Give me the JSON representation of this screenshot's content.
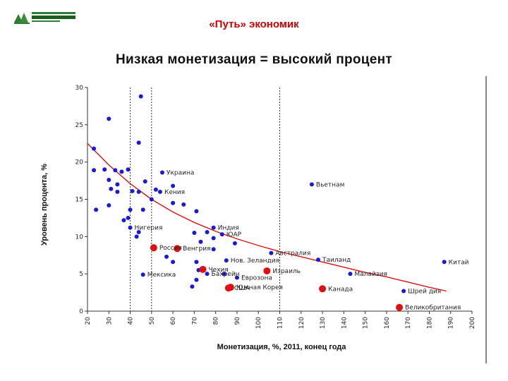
{
  "header": {
    "logo": "organization-logo",
    "title": "«Путь» экономик"
  },
  "slide_title": "Низкая монетизация = высокий процент",
  "colors": {
    "header_title": "#cc0000",
    "point_blue": "#1a1ad6",
    "point_red": "#e01010",
    "trend": "#dd1111",
    "logo_green": "#2e7d32"
  },
  "chart_data": {
    "type": "scatter",
    "xlabel": "Монетизация, %, 2011, конец года",
    "ylabel": "Уровень процента, %",
    "xlim": [
      20,
      200
    ],
    "ylim": [
      0,
      30
    ],
    "x_ticks": [
      20,
      30,
      40,
      50,
      60,
      70,
      80,
      90,
      100,
      110,
      120,
      130,
      140,
      150,
      160,
      170,
      180,
      190,
      200
    ],
    "y_ticks": [
      0,
      5,
      10,
      15,
      20,
      25,
      30
    ],
    "reference_lines_x": [
      40,
      50,
      110
    ],
    "grid": false,
    "legend": "none",
    "trend_line": {
      "type": "decay",
      "points": [
        [
          20,
          22.5
        ],
        [
          30,
          19.6
        ],
        [
          40,
          17.1
        ],
        [
          50,
          15.0
        ],
        [
          60,
          13.3
        ],
        [
          70,
          11.9
        ],
        [
          80,
          10.7
        ],
        [
          90,
          9.7
        ],
        [
          100,
          8.8
        ],
        [
          110,
          8.0
        ],
        [
          120,
          7.3
        ],
        [
          130,
          6.6
        ],
        [
          140,
          5.9
        ],
        [
          150,
          5.2
        ],
        [
          160,
          4.6
        ],
        [
          170,
          3.9
        ],
        [
          180,
          3.2
        ],
        [
          188,
          2.7
        ]
      ]
    },
    "series": [
      {
        "color": "blue",
        "points": [
          {
            "x": 45,
            "y": 28.8,
            "label": ""
          },
          {
            "x": 30,
            "y": 25.8,
            "label": ""
          },
          {
            "x": 44,
            "y": 22.6,
            "label": ""
          },
          {
            "x": 23,
            "y": 21.8,
            "label": ""
          },
          {
            "x": 23,
            "y": 18.9,
            "label": ""
          },
          {
            "x": 28,
            "y": 19.0,
            "label": ""
          },
          {
            "x": 33,
            "y": 18.9,
            "label": ""
          },
          {
            "x": 36,
            "y": 18.7,
            "label": ""
          },
          {
            "x": 39,
            "y": 19.0,
            "label": ""
          },
          {
            "x": 55,
            "y": 18.6,
            "label": "Украина"
          },
          {
            "x": 30,
            "y": 17.6,
            "label": ""
          },
          {
            "x": 34,
            "y": 17.0,
            "label": ""
          },
          {
            "x": 47,
            "y": 17.4,
            "label": ""
          },
          {
            "x": 31,
            "y": 16.4,
            "label": ""
          },
          {
            "x": 34,
            "y": 16.0,
            "label": ""
          },
          {
            "x": 41,
            "y": 16.1,
            "label": ""
          },
          {
            "x": 44,
            "y": 16.0,
            "label": ""
          },
          {
            "x": 52,
            "y": 16.3,
            "label": ""
          },
          {
            "x": 54,
            "y": 16.0,
            "label": "Кения"
          },
          {
            "x": 60,
            "y": 16.8,
            "label": ""
          },
          {
            "x": 30,
            "y": 14.2,
            "label": ""
          },
          {
            "x": 24,
            "y": 13.6,
            "label": ""
          },
          {
            "x": 40,
            "y": 13.6,
            "label": ""
          },
          {
            "x": 46,
            "y": 13.6,
            "label": ""
          },
          {
            "x": 50,
            "y": 15.0,
            "label": ""
          },
          {
            "x": 60,
            "y": 14.5,
            "label": ""
          },
          {
            "x": 65,
            "y": 14.3,
            "label": ""
          },
          {
            "x": 71,
            "y": 13.4,
            "label": ""
          },
          {
            "x": 37,
            "y": 12.2,
            "label": ""
          },
          {
            "x": 39,
            "y": 12.5,
            "label": ""
          },
          {
            "x": 40,
            "y": 11.2,
            "label": "Нигерия"
          },
          {
            "x": 44,
            "y": 10.6,
            "label": ""
          },
          {
            "x": 43,
            "y": 10.0,
            "label": ""
          },
          {
            "x": 79,
            "y": 11.2,
            "label": "Индия"
          },
          {
            "x": 83,
            "y": 10.3,
            "label": "ЮАР"
          },
          {
            "x": 76,
            "y": 10.6,
            "label": ""
          },
          {
            "x": 79,
            "y": 9.8,
            "label": ""
          },
          {
            "x": 70,
            "y": 10.5,
            "label": ""
          },
          {
            "x": 73,
            "y": 9.3,
            "label": ""
          },
          {
            "x": 89,
            "y": 9.1,
            "label": ""
          },
          {
            "x": 79,
            "y": 8.3,
            "label": ""
          },
          {
            "x": 57,
            "y": 7.3,
            "label": ""
          },
          {
            "x": 60,
            "y": 6.6,
            "label": ""
          },
          {
            "x": 71,
            "y": 6.6,
            "label": ""
          },
          {
            "x": 85,
            "y": 6.8,
            "label": "Нов. Зеландия"
          },
          {
            "x": 106,
            "y": 7.8,
            "label": "Австралия"
          },
          {
            "x": 125,
            "y": 17.0,
            "label": "Вьетнам"
          },
          {
            "x": 128,
            "y": 6.9,
            "label": "Таиланд"
          },
          {
            "x": 143,
            "y": 5.0,
            "label": "Малайзия"
          },
          {
            "x": 187,
            "y": 6.6,
            "label": "Китай"
          },
          {
            "x": 72,
            "y": 5.5,
            "label": ""
          },
          {
            "x": 76,
            "y": 5.0,
            "label": "Бахрейн"
          },
          {
            "x": 84,
            "y": 5.0,
            "label": ""
          },
          {
            "x": 90,
            "y": 4.5,
            "label": "Еврозона"
          },
          {
            "x": 71,
            "y": 4.2,
            "label": ""
          },
          {
            "x": 69,
            "y": 3.3,
            "label": ""
          },
          {
            "x": 46,
            "y": 4.9,
            "label": "Мексика"
          },
          {
            "x": 168,
            "y": 2.7,
            "label": "Шрей дия"
          }
        ]
      },
      {
        "color": "red",
        "points": [
          {
            "x": 51,
            "y": 8.5,
            "label": "Россия"
          },
          {
            "x": 62,
            "y": 8.4,
            "label": "Венгрия"
          },
          {
            "x": 74,
            "y": 5.6,
            "label": "Чехия"
          },
          {
            "x": 87,
            "y": 3.2,
            "label": "Южная Корея"
          },
          {
            "x": 104,
            "y": 5.4,
            "label": "Израиль"
          },
          {
            "x": 130,
            "y": 3.0,
            "label": "Канада"
          },
          {
            "x": 166,
            "y": 0.5,
            "label": "Великобритания"
          },
          {
            "x": 86,
            "y": 3.1,
            "label": "США"
          }
        ]
      }
    ]
  }
}
